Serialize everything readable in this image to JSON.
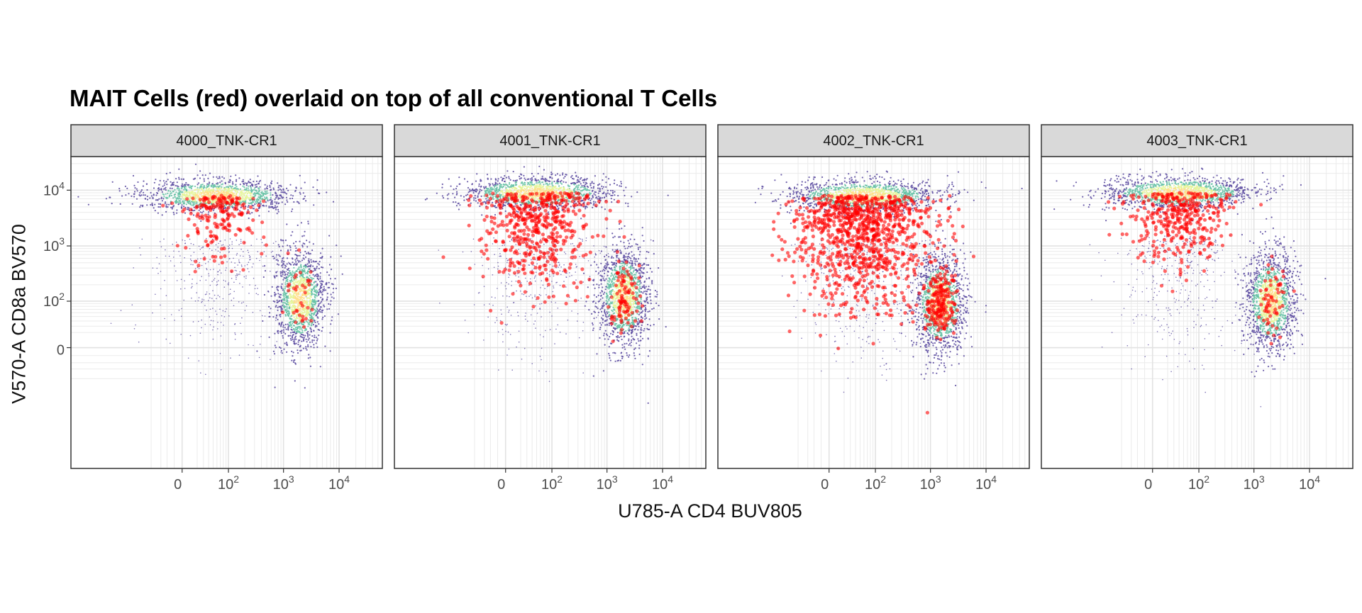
{
  "chart_data": {
    "type": "scatter",
    "title": "MAIT Cells (red) overlaid on top of all conventional T Cells",
    "xlabel": "U785-A CD4 BUV805",
    "ylabel": "V570-A CD8a BV570",
    "scale": "biexponential (log-like, linear near 0)",
    "grid": true,
    "legend": "none",
    "colors": {
      "highlight": "#ff0000",
      "density_low": "#5e4fa2",
      "density_mid_low": "#66c2a5",
      "density_mid_high": "#e6f598",
      "density_high": "#fee08b",
      "strip_fill": "#d9d9d9",
      "panel_border": "#333333",
      "grid": "#ebebeb"
    },
    "x_ticks": [
      "0",
      "10^2",
      "10^3",
      "10^4"
    ],
    "y_ticks": [
      "0",
      "10^2",
      "10^3",
      "10^4"
    ],
    "panels": [
      {
        "name": "4000_TNK-CR1",
        "populations": [
          {
            "label": "CD8+ CD4- cluster",
            "cd4_center": 60,
            "cd8_center": 8000,
            "density": "high"
          },
          {
            "label": "CD4+ CD8- cluster",
            "cd4_center": 2000,
            "cd8_center": 100,
            "density": "high"
          }
        ],
        "mait_events": "sparse, mostly CD8+ CD4- with a few in the CD4+ cluster"
      },
      {
        "name": "4001_TNK-CR1",
        "populations": [
          {
            "label": "CD8+ CD4- cluster",
            "cd4_center": 50,
            "cd8_center": 9000,
            "density": "high"
          },
          {
            "label": "CD4+ CD8- cluster",
            "cd4_center": 2000,
            "cd8_center": 120,
            "density": "high"
          }
        ],
        "mait_events": "moderate, spread from CD8 high down to CD8 low at low CD4"
      },
      {
        "name": "4002_TNK-CR1",
        "populations": [
          {
            "label": "CD8+ CD4- cluster",
            "cd4_center": 60,
            "cd8_center": 8000,
            "density": "high"
          },
          {
            "label": "CD4+ CD8- cluster",
            "cd4_center": 1500,
            "cd8_center": 90,
            "density": "high"
          }
        ],
        "mait_events": "dense, spanning CD8 high to CD8 low at low CD4"
      },
      {
        "name": "4003_TNK-CR1",
        "populations": [
          {
            "label": "CD8+ CD4- cluster",
            "cd4_center": 40,
            "cd8_center": 9000,
            "density": "high"
          },
          {
            "label": "CD4+ CD8- cluster",
            "cd4_center": 2000,
            "cd8_center": 100,
            "density": "high"
          }
        ],
        "mait_events": "moderate, mostly CD8 high, some in the CD4+ cluster"
      }
    ]
  }
}
